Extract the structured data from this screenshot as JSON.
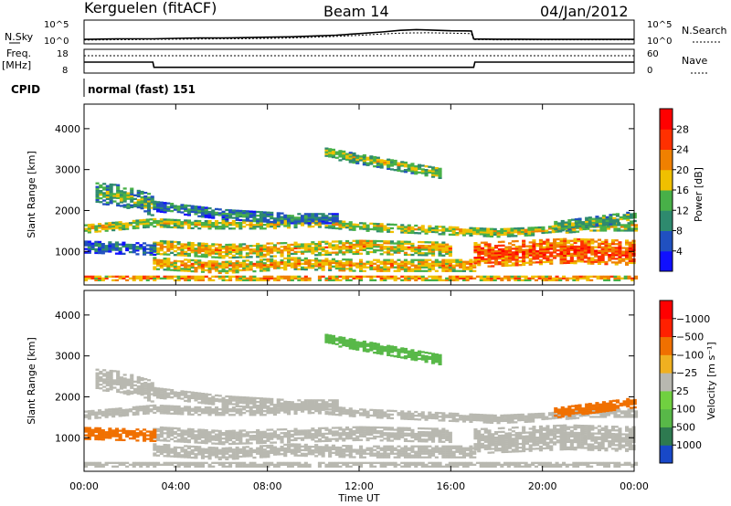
{
  "header": {
    "station": "Kerguelen (fitACF)",
    "beam": "Beam 14",
    "date": "04/Jan/2012"
  },
  "noise_panel": {
    "left_label": "N.Sky",
    "right_label": "N.Search",
    "ticks": [
      "10^5",
      "10^0"
    ],
    "sky": [
      [
        0,
        0.13
      ],
      [
        0.5,
        0.14
      ],
      [
        1,
        0.15
      ],
      [
        1.5,
        0.16
      ],
      [
        2,
        0.16
      ],
      [
        3,
        0.16
      ],
      [
        4,
        0.18
      ],
      [
        5,
        0.2
      ],
      [
        6,
        0.2
      ],
      [
        7,
        0.22
      ],
      [
        8,
        0.24
      ],
      [
        9,
        0.26
      ],
      [
        10,
        0.3
      ],
      [
        11,
        0.34
      ],
      [
        12,
        0.42
      ],
      [
        13,
        0.5
      ],
      [
        13.8,
        0.58
      ],
      [
        14.5,
        0.62
      ],
      [
        15,
        0.6
      ],
      [
        16,
        0.56
      ],
      [
        16.9,
        0.55
      ],
      [
        17,
        0.15
      ],
      [
        18,
        0.14
      ],
      [
        19,
        0.14
      ],
      [
        20,
        0.13
      ],
      [
        21,
        0.13
      ],
      [
        22,
        0.13
      ],
      [
        23,
        0.13
      ],
      [
        24,
        0.13
      ]
    ],
    "search": [
      [
        0,
        0.1
      ],
      [
        1,
        0.11
      ],
      [
        2,
        0.12
      ],
      [
        3,
        0.13
      ],
      [
        4,
        0.14
      ],
      [
        5,
        0.15
      ],
      [
        6,
        0.16
      ],
      [
        7,
        0.17
      ],
      [
        8,
        0.18
      ],
      [
        9,
        0.2
      ],
      [
        10,
        0.24
      ],
      [
        11,
        0.28
      ],
      [
        12,
        0.33
      ],
      [
        13,
        0.4
      ],
      [
        14,
        0.45
      ],
      [
        15,
        0.46
      ],
      [
        16,
        0.44
      ],
      [
        16.9,
        0.42
      ],
      [
        17,
        0.12
      ],
      [
        18,
        0.11
      ],
      [
        20,
        0.11
      ],
      [
        22,
        0.11
      ],
      [
        24,
        0.11
      ]
    ]
  },
  "freq_panel": {
    "left_label_1": "Freq.",
    "left_label_2": "[MHz]",
    "right_label": "Nave",
    "left_ticks": [
      "18",
      "8"
    ],
    "right_ticks": [
      "60",
      "0"
    ],
    "freq_mhz": [
      [
        0,
        12.6
      ],
      [
        3,
        12.6
      ],
      [
        3.05,
        10.2
      ],
      [
        17,
        10.2
      ],
      [
        17.05,
        12.6
      ],
      [
        24,
        12.6
      ]
    ],
    "nave": [
      [
        0,
        45
      ],
      [
        24,
        45
      ]
    ],
    "nave_ylim": [
      0,
      60
    ],
    "freq_ylim": [
      8,
      18
    ]
  },
  "cpid": {
    "label": "CPID",
    "mode": "normal (fast) 151"
  },
  "axes": {
    "ylabel": "Slant Range [km]",
    "xlabel": "Time UT",
    "x_ticks": [
      "00:00",
      "04:00",
      "08:00",
      "12:00",
      "16:00",
      "20:00",
      "00:00"
    ],
    "y_ticks": [
      "1000",
      "2000",
      "3000",
      "4000"
    ],
    "xlim_hours": [
      0,
      24
    ],
    "ylim_km": [
      180,
      4600
    ]
  },
  "power_scale": {
    "title": "Power [dB]",
    "labels": [
      "4",
      "8",
      "12",
      "16",
      "20",
      "24",
      "28"
    ],
    "colors": [
      "#1010ff",
      "#2050c0",
      "#2e8a6e",
      "#48b048",
      "#f0c000",
      "#f08000",
      "#ff3000",
      "#ff0000"
    ]
  },
  "velocity_scale": {
    "title": "Velocity [m s⁻¹]",
    "labels": [
      "1000",
      "500",
      "100",
      "25",
      "−25",
      "−100",
      "−500",
      "−1000"
    ],
    "colors": [
      "#1848c8",
      "#2e7a50",
      "#58b848",
      "#70d040",
      "#b8b8b0",
      "#f0b020",
      "#f07000",
      "#ff2000",
      "#ff0000"
    ]
  },
  "chart_data": {
    "type": "heatmap",
    "x_unit": "hours UT",
    "y_unit": "km",
    "bands": [
      {
        "name": "main",
        "t0": 0,
        "t1": 24,
        "center": [
          [
            0,
            1550
          ],
          [
            2,
            1650
          ],
          [
            3,
            1700
          ],
          [
            5,
            1650
          ],
          [
            8,
            1650
          ],
          [
            10,
            1700
          ],
          [
            12,
            1600
          ],
          [
            14,
            1550
          ],
          [
            16,
            1500
          ],
          [
            18,
            1450
          ],
          [
            20,
            1500
          ],
          [
            22,
            1600
          ],
          [
            24,
            1600
          ]
        ],
        "width": 220,
        "level": 18,
        "vel": 0
      },
      {
        "name": "upper",
        "t0": 0.5,
        "t1": 3,
        "center": [
          [
            0.5,
            2400
          ],
          [
            1.5,
            2350
          ],
          [
            3,
            2100
          ]
        ],
        "width": 500,
        "level": 14,
        "vel": 0
      },
      {
        "name": "upper-slope",
        "t0": 3,
        "t1": 11,
        "center": [
          [
            3,
            2100
          ],
          [
            6,
            1900
          ],
          [
            9,
            1800
          ],
          [
            11,
            1800
          ]
        ],
        "width": 260,
        "level": 11,
        "vel": 0
      },
      {
        "name": "mid",
        "t0": 3,
        "t1": 16,
        "center": [
          [
            3,
            1100
          ],
          [
            6,
            1000
          ],
          [
            9,
            1050
          ],
          [
            12,
            1100
          ],
          [
            16,
            1050
          ]
        ],
        "width": 350,
        "level": 20,
        "vel": 0
      },
      {
        "name": "lower",
        "t0": 3,
        "t1": 17,
        "center": [
          [
            3,
            700
          ],
          [
            6,
            600
          ],
          [
            9,
            700
          ],
          [
            12,
            650
          ],
          [
            16,
            650
          ],
          [
            17,
            650
          ]
        ],
        "width": 300,
        "level": 21,
        "vel": 0
      },
      {
        "name": "evening",
        "t0": 17,
        "t1": 24,
        "center": [
          [
            17,
            900
          ],
          [
            19,
            950
          ],
          [
            21,
            1000
          ],
          [
            24,
            950
          ]
        ],
        "width": 600,
        "level": 26,
        "vel": 0
      },
      {
        "name": "high-patch",
        "t0": 10.5,
        "t1": 15.5,
        "center": [
          [
            10.5,
            3400
          ],
          [
            12.5,
            3200
          ],
          [
            14.5,
            3000
          ],
          [
            15.5,
            2900
          ]
        ],
        "width": 260,
        "level": 16,
        "vel": 200
      },
      {
        "name": "ground",
        "t0": 0,
        "t1": 24,
        "center": [
          [
            0,
            340
          ],
          [
            12,
            340
          ],
          [
            24,
            340
          ]
        ],
        "width": 130,
        "level": 22,
        "vel": 0
      },
      {
        "name": "early-low",
        "t0": 0,
        "t1": 3,
        "center": [
          [
            0,
            1100
          ],
          [
            3,
            1050
          ]
        ],
        "width": 300,
        "level": 9,
        "vel": -120
      },
      {
        "name": "evening-edge",
        "t0": 20.5,
        "t1": 24,
        "center": [
          [
            20.5,
            1600
          ],
          [
            24,
            1850
          ]
        ],
        "width": 250,
        "level": 15,
        "vel": -150
      }
    ]
  }
}
